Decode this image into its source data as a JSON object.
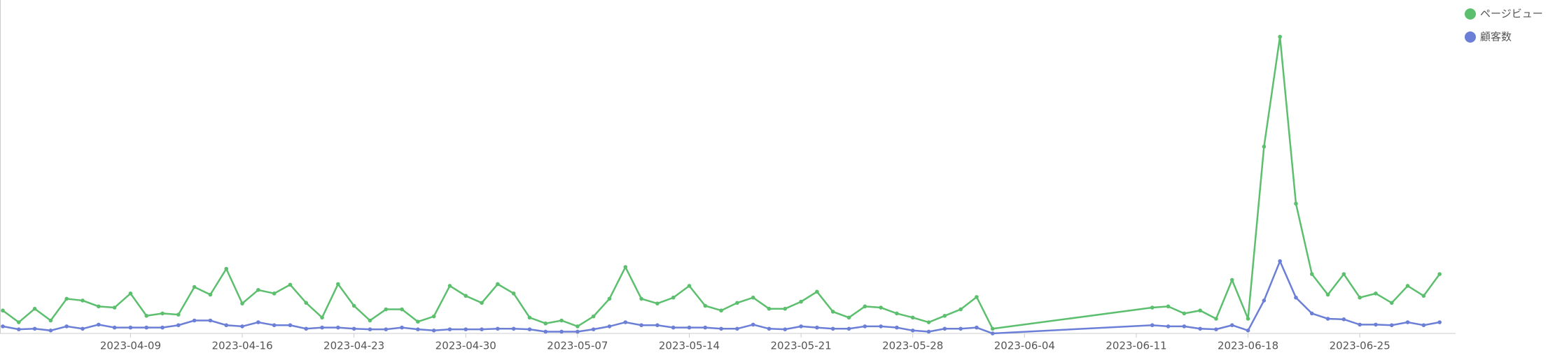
{
  "chart_data": {
    "type": "line",
    "x": [
      "2023-04-01",
      "2023-04-02",
      "2023-04-03",
      "2023-04-04",
      "2023-04-05",
      "2023-04-06",
      "2023-04-07",
      "2023-04-08",
      "2023-04-09",
      "2023-04-10",
      "2023-04-11",
      "2023-04-12",
      "2023-04-13",
      "2023-04-14",
      "2023-04-15",
      "2023-04-16",
      "2023-04-17",
      "2023-04-18",
      "2023-04-19",
      "2023-04-20",
      "2023-04-21",
      "2023-04-22",
      "2023-04-23",
      "2023-04-24",
      "2023-04-25",
      "2023-04-26",
      "2023-04-27",
      "2023-04-28",
      "2023-04-29",
      "2023-04-30",
      "2023-05-01",
      "2023-05-02",
      "2023-05-03",
      "2023-05-04",
      "2023-05-05",
      "2023-05-06",
      "2023-05-07",
      "2023-05-08",
      "2023-05-09",
      "2023-05-10",
      "2023-05-11",
      "2023-05-12",
      "2023-05-13",
      "2023-05-14",
      "2023-05-15",
      "2023-05-16",
      "2023-05-17",
      "2023-05-18",
      "2023-05-19",
      "2023-05-20",
      "2023-05-21",
      "2023-05-22",
      "2023-05-23",
      "2023-05-24",
      "2023-05-25",
      "2023-05-26",
      "2023-05-27",
      "2023-05-28",
      "2023-05-29",
      "2023-05-30",
      "2023-05-31",
      "2023-06-01",
      "2023-06-02",
      "2023-06-12",
      "2023-06-13",
      "2023-06-14",
      "2023-06-15",
      "2023-06-16",
      "2023-06-17",
      "2023-06-18",
      "2023-06-19",
      "2023-06-20",
      "2023-06-21",
      "2023-06-22",
      "2023-06-23",
      "2023-06-24",
      "2023-06-25",
      "2023-06-26",
      "2023-06-27",
      "2023-06-28",
      "2023-06-29",
      "2023-06-30"
    ],
    "series": [
      {
        "name": "ページビュー",
        "color": "#5cbf6e",
        "values": [
          39,
          19,
          42,
          22,
          59,
          56,
          46,
          44,
          68,
          30,
          34,
          32,
          79,
          66,
          110,
          51,
          74,
          68,
          83,
          52,
          27,
          84,
          47,
          22,
          41,
          41,
          20,
          29,
          81,
          64,
          52,
          84,
          68,
          27,
          17,
          22,
          12,
          29,
          59,
          113,
          59,
          51,
          61,
          81,
          47,
          39,
          52,
          61,
          42,
          42,
          54,
          71,
          37,
          27,
          46,
          44,
          34,
          27,
          19,
          30,
          41,
          62,
          8,
          44,
          46,
          34,
          39,
          25,
          91,
          25,
          318,
          505,
          221,
          101,
          66,
          101,
          61,
          68,
          52,
          81,
          64,
          101
        ]
      },
      {
        "name": "顧客数",
        "color": "#6b7fd7",
        "values": [
          12,
          7,
          8,
          5,
          12,
          8,
          15,
          10,
          10,
          10,
          10,
          14,
          22,
          22,
          14,
          12,
          19,
          14,
          14,
          8,
          10,
          10,
          8,
          7,
          7,
          10,
          7,
          5,
          7,
          7,
          7,
          8,
          8,
          7,
          3,
          3,
          3,
          7,
          12,
          19,
          14,
          14,
          10,
          10,
          10,
          8,
          8,
          15,
          8,
          7,
          12,
          10,
          8,
          8,
          12,
          12,
          10,
          5,
          3,
          8,
          8,
          10,
          0,
          14,
          12,
          12,
          8,
          7,
          14,
          5,
          56,
          123,
          61,
          34,
          25,
          24,
          15,
          15,
          14,
          19,
          14,
          19
        ]
      }
    ],
    "xlim": [
      "2023-04-01",
      "2023-07-01"
    ],
    "ylim": [
      0,
      520
    ],
    "xticks": [
      "2023-04-09",
      "2023-04-16",
      "2023-04-23",
      "2023-04-30",
      "2023-05-07",
      "2023-05-14",
      "2023-05-21",
      "2023-05-28",
      "2023-06-04",
      "2023-06-11",
      "2023-06-18",
      "2023-06-25"
    ]
  }
}
